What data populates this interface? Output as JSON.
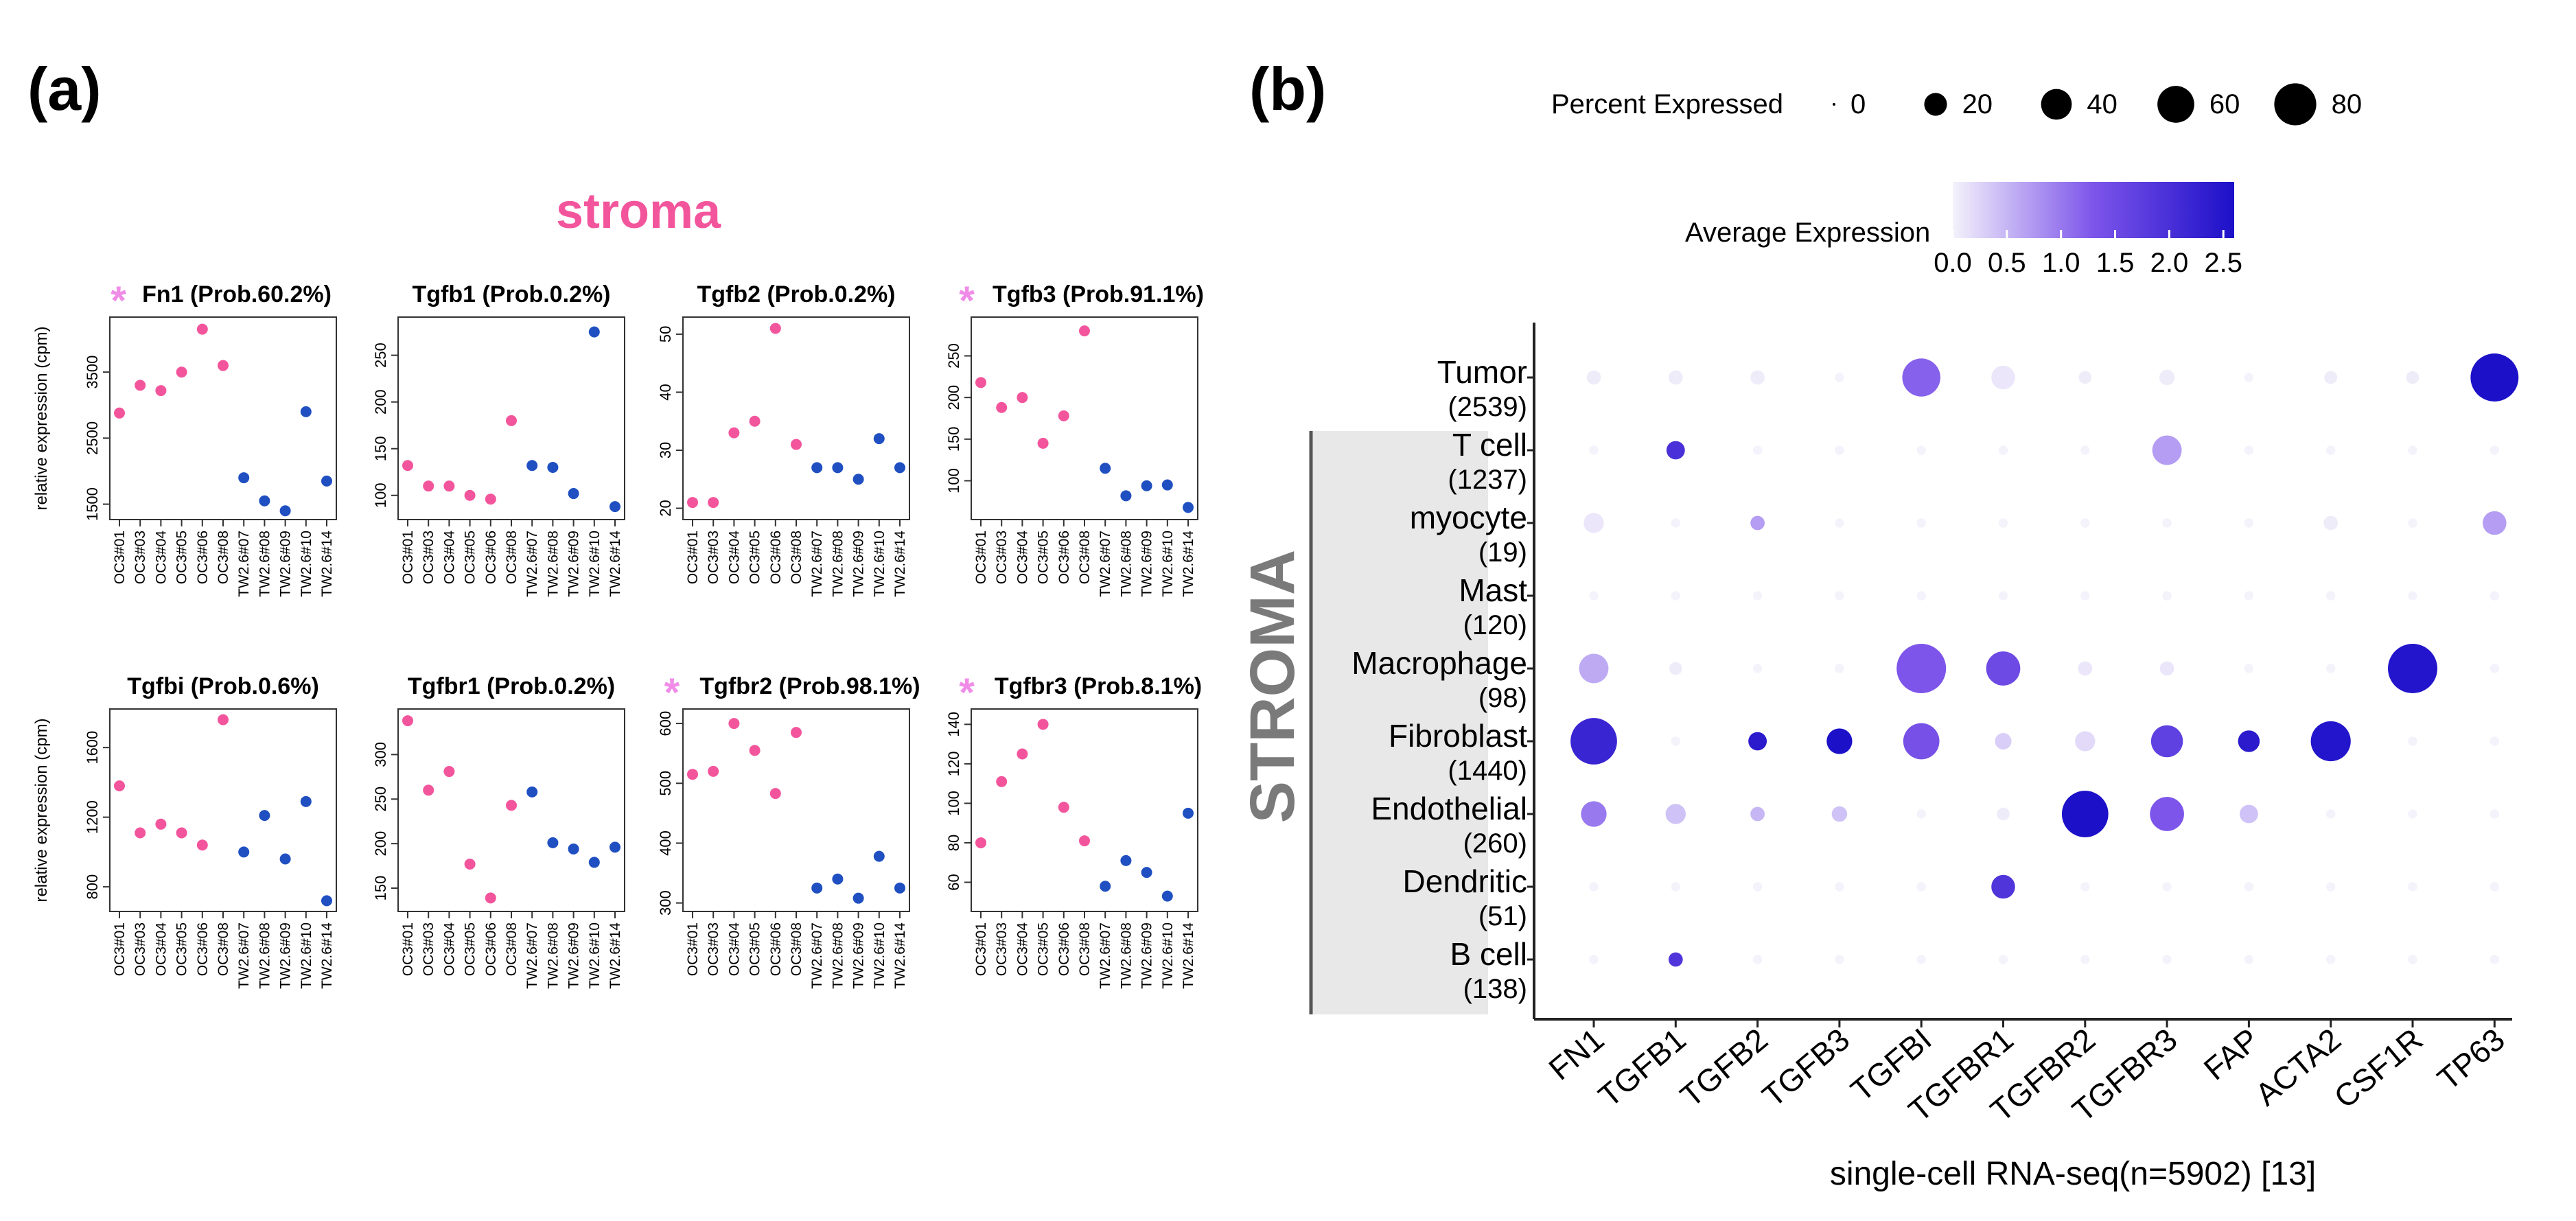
{
  "panel_labels": {
    "a": "(a)",
    "b": "(b)"
  },
  "colors": {
    "pink": "#f3559c",
    "blue": "#1f4fc1",
    "star": "#f08ce8",
    "dot_low": "#ece9f7",
    "dot_high": "#1c10c8",
    "band": "#e8e8e8"
  },
  "panel_a": {
    "title": "stroma",
    "ylabel": "relative expression (cpm)",
    "samples": [
      "OC3#01",
      "OC3#03",
      "OC3#04",
      "OC3#05",
      "OC3#06",
      "OC3#08",
      "TW2.6#07",
      "TW2.6#08",
      "TW2.6#09",
      "TW2.6#10",
      "TW2.6#14"
    ],
    "star": "*"
  },
  "chart_data": [
    {
      "type": "scatter",
      "name": "Fn1",
      "title": "Fn1 (Prob.60.2%)",
      "starred": true,
      "ylabel": "relative expression (cpm)",
      "categories": [
        "OC3#01",
        "OC3#03",
        "OC3#04",
        "OC3#05",
        "OC3#06",
        "OC3#08",
        "TW2.6#07",
        "TW2.6#08",
        "TW2.6#09",
        "TW2.6#10",
        "TW2.6#14"
      ],
      "values": [
        2880,
        3300,
        3220,
        3500,
        4150,
        3600,
        1900,
        1550,
        1400,
        2900,
        1850
      ],
      "groups": [
        "OC3",
        "OC3",
        "OC3",
        "OC3",
        "OC3",
        "OC3",
        "TW2.6",
        "TW2.6",
        "TW2.6",
        "TW2.6",
        "TW2.6"
      ],
      "yticks": [
        1500,
        2500,
        3500
      ],
      "ylim": [
        1350,
        4250
      ]
    },
    {
      "type": "scatter",
      "name": "Tgfb1",
      "title": "Tgfb1 (Prob.0.2%)",
      "starred": false,
      "categories": [
        "OC3#01",
        "OC3#03",
        "OC3#04",
        "OC3#05",
        "OC3#06",
        "OC3#08",
        "TW2.6#07",
        "TW2.6#08",
        "TW2.6#09",
        "TW2.6#10",
        "TW2.6#14"
      ],
      "values": [
        132,
        110,
        110,
        100,
        96,
        180,
        132,
        130,
        102,
        275,
        88
      ],
      "groups": [
        "OC3",
        "OC3",
        "OC3",
        "OC3",
        "OC3",
        "OC3",
        "TW2.6",
        "TW2.6",
        "TW2.6",
        "TW2.6",
        "TW2.6"
      ],
      "yticks": [
        100,
        150,
        200,
        250
      ],
      "ylim": [
        80,
        285
      ]
    },
    {
      "type": "scatter",
      "name": "Tgfb2",
      "title": "Tgfb2 (Prob.0.2%)",
      "starred": false,
      "categories": [
        "OC3#01",
        "OC3#03",
        "OC3#04",
        "OC3#05",
        "OC3#06",
        "OC3#08",
        "TW2.6#07",
        "TW2.6#08",
        "TW2.6#09",
        "TW2.6#10",
        "TW2.6#14"
      ],
      "values": [
        21,
        21,
        33,
        35,
        51,
        31,
        27,
        27,
        25,
        32,
        27
      ],
      "groups": [
        "OC3",
        "OC3",
        "OC3",
        "OC3",
        "OC3",
        "OC3",
        "TW2.6",
        "TW2.6",
        "TW2.6",
        "TW2.6",
        "TW2.6"
      ],
      "yticks": [
        20,
        30,
        40,
        50
      ],
      "ylim": [
        19,
        52
      ]
    },
    {
      "type": "scatter",
      "name": "Tgfb3",
      "title": "Tgfb3 (Prob.91.1%)",
      "starred": true,
      "categories": [
        "OC3#01",
        "OC3#03",
        "OC3#04",
        "OC3#05",
        "OC3#06",
        "OC3#08",
        "TW2.6#07",
        "TW2.6#08",
        "TW2.6#09",
        "TW2.6#10",
        "TW2.6#14"
      ],
      "values": [
        218,
        188,
        200,
        145,
        178,
        280,
        115,
        82,
        94,
        95,
        68
      ],
      "groups": [
        "OC3",
        "OC3",
        "OC3",
        "OC3",
        "OC3",
        "OC3",
        "TW2.6",
        "TW2.6",
        "TW2.6",
        "TW2.6",
        "TW2.6"
      ],
      "yticks": [
        100,
        150,
        200,
        250
      ],
      "ylim": [
        60,
        290
      ]
    },
    {
      "type": "scatter",
      "name": "Tgfbi",
      "title": "Tgfbi (Prob.0.6%)",
      "starred": false,
      "ylabel": "relative expression (cpm)",
      "categories": [
        "OC3#01",
        "OC3#03",
        "OC3#04",
        "OC3#05",
        "OC3#06",
        "OC3#08",
        "TW2.6#07",
        "TW2.6#08",
        "TW2.6#09",
        "TW2.6#10",
        "TW2.6#14"
      ],
      "values": [
        1380,
        1110,
        1160,
        1110,
        1040,
        1760,
        1000,
        1210,
        960,
        1290,
        720
      ],
      "groups": [
        "OC3",
        "OC3",
        "OC3",
        "OC3",
        "OC3",
        "OC3",
        "TW2.6",
        "TW2.6",
        "TW2.6",
        "TW2.6",
        "TW2.6"
      ],
      "yticks": [
        800,
        1200,
        1600
      ],
      "ylim": [
        690,
        1790
      ]
    },
    {
      "type": "scatter",
      "name": "Tgfbr1",
      "title": "Tgfbr1 (Prob.0.2%)",
      "starred": false,
      "categories": [
        "OC3#01",
        "OC3#03",
        "OC3#04",
        "OC3#05",
        "OC3#06",
        "OC3#08",
        "TW2.6#07",
        "TW2.6#08",
        "TW2.6#09",
        "TW2.6#10",
        "TW2.6#14"
      ],
      "values": [
        338,
        260,
        281,
        177,
        139,
        243,
        258,
        201,
        194,
        179,
        196
      ],
      "groups": [
        "OC3",
        "OC3",
        "OC3",
        "OC3",
        "OC3",
        "OC3",
        "TW2.6",
        "TW2.6",
        "TW2.6",
        "TW2.6",
        "TW2.6"
      ],
      "yticks": [
        150,
        200,
        250,
        300
      ],
      "ylim": [
        130,
        345
      ]
    },
    {
      "type": "scatter",
      "name": "Tgfbr2",
      "title": "Tgfbr2 (Prob.98.1%)",
      "starred": true,
      "categories": [
        "OC3#01",
        "OC3#03",
        "OC3#04",
        "OC3#05",
        "OC3#06",
        "OC3#08",
        "TW2.6#07",
        "TW2.6#08",
        "TW2.6#09",
        "TW2.6#10",
        "TW2.6#14"
      ],
      "values": [
        515,
        520,
        600,
        555,
        483,
        585,
        325,
        340,
        308,
        378,
        325
      ],
      "groups": [
        "OC3",
        "OC3",
        "OC3",
        "OC3",
        "OC3",
        "OC3",
        "TW2.6",
        "TW2.6",
        "TW2.6",
        "TW2.6",
        "TW2.6"
      ],
      "yticks": [
        300,
        400,
        500,
        600
      ],
      "ylim": [
        295,
        615
      ]
    },
    {
      "type": "scatter",
      "name": "Tgfbr3",
      "title": "Tgfbr3 (Prob.8.1%)",
      "starred": true,
      "categories": [
        "OC3#01",
        "OC3#03",
        "OC3#04",
        "OC3#05",
        "OC3#06",
        "OC3#08",
        "TW2.6#07",
        "TW2.6#08",
        "TW2.6#09",
        "TW2.6#10",
        "TW2.6#14"
      ],
      "values": [
        80,
        111,
        125,
        140,
        98,
        81,
        58,
        71,
        65,
        53,
        95
      ],
      "groups": [
        "OC3",
        "OC3",
        "OC3",
        "OC3",
        "OC3",
        "OC3",
        "TW2.6",
        "TW2.6",
        "TW2.6",
        "TW2.6",
        "TW2.6"
      ],
      "yticks": [
        60,
        80,
        100,
        120,
        140
      ],
      "ylim": [
        48,
        145
      ]
    },
    {
      "type": "dotplot",
      "name": "single-cell",
      "xlabel": "single-cell RNA-seq(n=5902) [13]",
      "group_label": "STROMA",
      "genes": [
        "FN1",
        "TGFB1",
        "TGFB2",
        "TGFB3",
        "TGFBI",
        "TGFBR1",
        "TGFBR2",
        "TGFBR3",
        "FAP",
        "ACTA2",
        "CSF1R",
        "TP63"
      ],
      "cell_types": [
        {
          "name": "Tumor",
          "n": "(2539)"
        },
        {
          "name": "T cell",
          "n": "(1237)"
        },
        {
          "name": "myocyte",
          "n": "(19)"
        },
        {
          "name": "Mast",
          "n": "(120)"
        },
        {
          "name": "Macrophage",
          "n": "(98)"
        },
        {
          "name": "Fibroblast",
          "n": "(1440)"
        },
        {
          "name": "Endothelial",
          "n": "(260)"
        },
        {
          "name": "Dendritic",
          "n": "(51)"
        },
        {
          "name": "B cell",
          "n": "(138)"
        }
      ],
      "percent_expressed": [
        [
          4,
          4,
          4,
          1,
          45,
          15,
          3,
          5,
          1,
          3,
          3,
          75
        ],
        [
          1,
          8,
          1,
          1,
          1,
          1,
          1,
          25,
          1,
          1,
          1,
          1
        ],
        [
          10,
          1,
          4,
          1,
          1,
          1,
          1,
          1,
          1,
          4,
          1,
          15
        ],
        [
          1,
          1,
          1,
          1,
          1,
          1,
          1,
          1,
          1,
          1,
          1,
          1
        ],
        [
          25,
          3,
          1,
          1,
          80,
          35,
          4,
          4,
          1,
          1,
          80,
          1
        ],
        [
          70,
          1,
          8,
          18,
          40,
          6,
          10,
          30,
          12,
          50,
          1,
          1
        ],
        [
          18,
          10,
          4,
          5,
          1,
          3,
          70,
          35,
          8,
          1,
          1,
          1
        ],
        [
          1,
          1,
          1,
          1,
          1,
          15,
          1,
          1,
          1,
          1,
          1,
          1
        ],
        [
          1,
          4,
          1,
          1,
          1,
          1,
          1,
          1,
          1,
          1,
          1,
          1
        ]
      ],
      "average_expression": [
        [
          0.05,
          0.05,
          0.05,
          0,
          1.2,
          0.1,
          0.05,
          0.05,
          0,
          0.05,
          0.05,
          2.6
        ],
        [
          0,
          2.0,
          0,
          0,
          0,
          0,
          0,
          0.7,
          0,
          0,
          0,
          0
        ],
        [
          0.1,
          0,
          0.7,
          0,
          0,
          0,
          0,
          0,
          0,
          0.05,
          0,
          0.7
        ],
        [
          0,
          0,
          0,
          0,
          0,
          0,
          0,
          0,
          0,
          0,
          0,
          0
        ],
        [
          0.6,
          0.05,
          0,
          0,
          1.3,
          1.5,
          0.1,
          0.1,
          0,
          0,
          2.5,
          0
        ],
        [
          2.2,
          0,
          2.4,
          2.6,
          1.4,
          0.3,
          0.2,
          1.7,
          2.4,
          2.5,
          0,
          0
        ],
        [
          1.0,
          0.4,
          0.5,
          0.4,
          0,
          0.05,
          2.6,
          1.3,
          0.4,
          0,
          0,
          0
        ],
        [
          0,
          0,
          0,
          0,
          0,
          1.9,
          0,
          0,
          0,
          0,
          0,
          0
        ],
        [
          0,
          1.9,
          0,
          0,
          0,
          0,
          0,
          0,
          0,
          0,
          0,
          0
        ]
      ],
      "legend": {
        "percent_title": "Percent Expressed",
        "percent_values": [
          0,
          20,
          40,
          60,
          80
        ],
        "avg_title": "Average Expression",
        "avg_ticks": [
          0.0,
          0.5,
          1.0,
          1.5,
          2.0,
          2.5
        ],
        "avg_tick_labels": [
          "0.0",
          "0.5",
          "1.0",
          "1.5",
          "2.0",
          "2.5"
        ],
        "avg_range": [
          0,
          2.6
        ]
      }
    }
  ]
}
